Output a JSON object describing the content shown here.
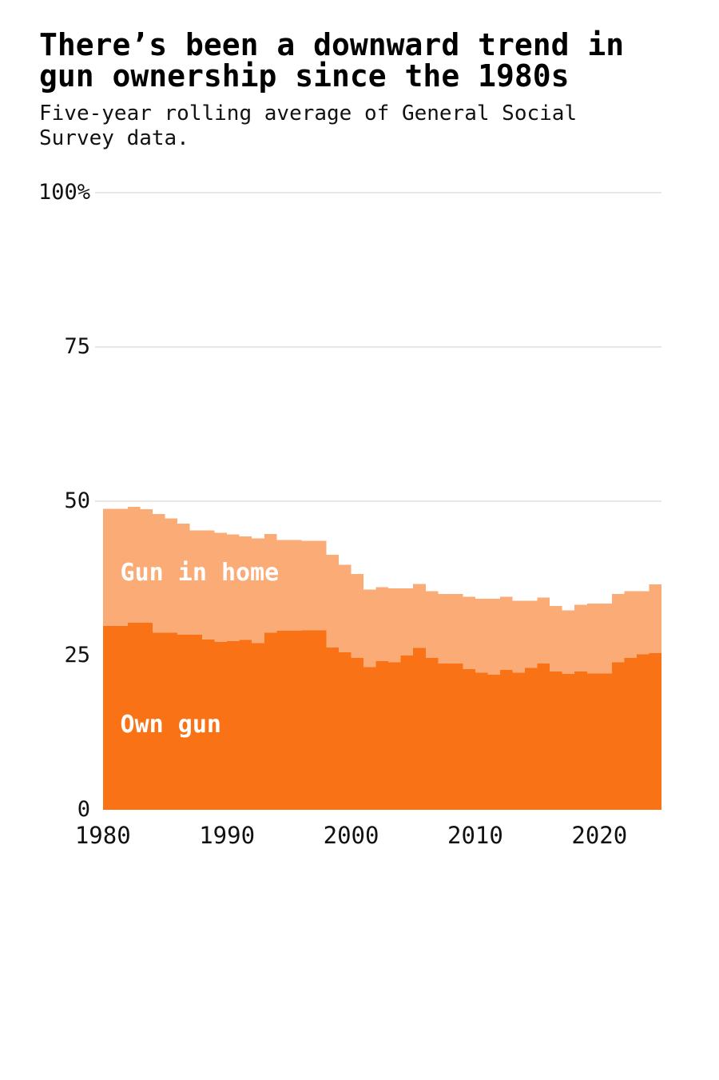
{
  "chart_data": {
    "type": "area",
    "subtype": "stacked-step",
    "title": "There’s been a downward trend in gun ownership since the 1980s",
    "subtitle": "Five-year rolling average of General Social Survey data.",
    "x_domain": [
      1979.5,
      2025
    ],
    "y_domain": [
      0,
      100
    ],
    "x_ticks": [
      {
        "value": 1980,
        "label": "1980"
      },
      {
        "value": 1990,
        "label": "1990"
      },
      {
        "value": 2000,
        "label": "2000"
      },
      {
        "value": 2010,
        "label": "2010"
      },
      {
        "value": 2020,
        "label": "2020"
      }
    ],
    "y_ticks": [
      {
        "value": 100,
        "label": "100%"
      },
      {
        "value": 75,
        "label": "75"
      },
      {
        "value": 50,
        "label": "50"
      },
      {
        "value": 25,
        "label": "25"
      },
      {
        "value": 0,
        "label": "0"
      }
    ],
    "gridline_values": [
      100,
      75,
      50
    ],
    "grid_color": "#cfcfcf",
    "legend_position": "inline-labels",
    "series": [
      {
        "key": "gun_in_home",
        "name": "Gun in home",
        "color": "#fbab75",
        "label_anchor": {
          "year": 1981.4,
          "value": 39.3
        }
      },
      {
        "key": "own_gun",
        "name": "Own gun",
        "color": "#f97316",
        "label_anchor": {
          "year": 1981.4,
          "value": 14.7
        }
      }
    ],
    "note": "Values are percent of U.S. adults; gun_in_home is total household series drawn behind own_gun; steps extend rightward until the next listed year (step-after), last step extends to 2025.",
    "points": [
      {
        "year": 1980,
        "gun_in_home": 48.8,
        "own_gun": 29.8
      },
      {
        "year": 1982,
        "gun_in_home": 49.1,
        "own_gun": 30.3
      },
      {
        "year": 1983,
        "gun_in_home": 48.7,
        "own_gun": 30.3
      },
      {
        "year": 1984,
        "gun_in_home": 47.9,
        "own_gun": 28.7
      },
      {
        "year": 1985,
        "gun_in_home": 47.2,
        "own_gun": 28.7
      },
      {
        "year": 1986,
        "gun_in_home": 46.4,
        "own_gun": 28.4
      },
      {
        "year": 1987,
        "gun_in_home": 45.3,
        "own_gun": 28.4
      },
      {
        "year": 1988,
        "gun_in_home": 45.3,
        "own_gun": 27.6
      },
      {
        "year": 1989,
        "gun_in_home": 44.9,
        "own_gun": 27.2
      },
      {
        "year": 1990,
        "gun_in_home": 44.6,
        "own_gun": 27.3
      },
      {
        "year": 1991,
        "gun_in_home": 44.3,
        "own_gun": 27.5
      },
      {
        "year": 1992,
        "gun_in_home": 44.0,
        "own_gun": 27.0
      },
      {
        "year": 1993,
        "gun_in_home": 44.7,
        "own_gun": 28.7
      },
      {
        "year": 1994,
        "gun_in_home": 43.7,
        "own_gun": 29.0
      },
      {
        "year": 1996,
        "gun_in_home": 43.6,
        "own_gun": 29.1
      },
      {
        "year": 1998,
        "gun_in_home": 41.3,
        "own_gun": 26.3
      },
      {
        "year": 1999,
        "gun_in_home": 39.7,
        "own_gun": 25.5
      },
      {
        "year": 2000,
        "gun_in_home": 38.2,
        "own_gun": 24.6
      },
      {
        "year": 2001,
        "gun_in_home": 35.7,
        "own_gun": 23.1
      },
      {
        "year": 2002,
        "gun_in_home": 36.1,
        "own_gun": 24.1
      },
      {
        "year": 2003,
        "gun_in_home": 35.9,
        "own_gun": 23.9
      },
      {
        "year": 2004,
        "gun_in_home": 35.9,
        "own_gun": 25.0
      },
      {
        "year": 2005,
        "gun_in_home": 36.6,
        "own_gun": 26.2
      },
      {
        "year": 2006,
        "gun_in_home": 35.4,
        "own_gun": 24.6
      },
      {
        "year": 2007,
        "gun_in_home": 35.0,
        "own_gun": 23.7
      },
      {
        "year": 2009,
        "gun_in_home": 34.5,
        "own_gun": 22.8
      },
      {
        "year": 2010,
        "gun_in_home": 34.2,
        "own_gun": 22.2
      },
      {
        "year": 2011,
        "gun_in_home": 34.2,
        "own_gun": 21.9
      },
      {
        "year": 2012,
        "gun_in_home": 34.5,
        "own_gun": 22.7
      },
      {
        "year": 2013,
        "gun_in_home": 33.9,
        "own_gun": 22.2
      },
      {
        "year": 2014,
        "gun_in_home": 33.9,
        "own_gun": 23.0
      },
      {
        "year": 2015,
        "gun_in_home": 34.4,
        "own_gun": 23.7
      },
      {
        "year": 2016,
        "gun_in_home": 33.0,
        "own_gun": 22.4
      },
      {
        "year": 2017,
        "gun_in_home": 32.3,
        "own_gun": 22.0
      },
      {
        "year": 2018,
        "gun_in_home": 33.2,
        "own_gun": 22.4
      },
      {
        "year": 2019,
        "gun_in_home": 33.4,
        "own_gun": 22.1
      },
      {
        "year": 2021,
        "gun_in_home": 35.0,
        "own_gun": 23.9
      },
      {
        "year": 2022,
        "gun_in_home": 35.4,
        "own_gun": 24.6
      },
      {
        "year": 2023,
        "gun_in_home": 35.4,
        "own_gun": 25.2
      },
      {
        "year": 2024,
        "gun_in_home": 36.5,
        "own_gun": 25.4
      }
    ]
  }
}
